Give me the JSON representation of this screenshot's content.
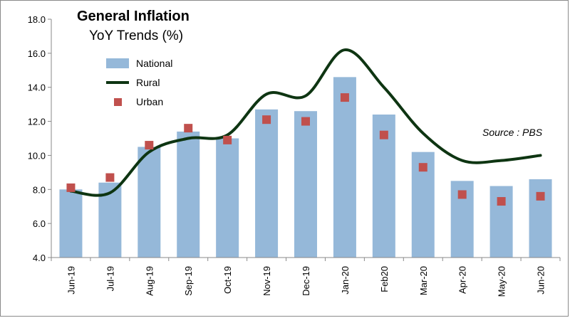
{
  "chart_data": {
    "type": "bar",
    "title": "General Inflation",
    "subtitle": "YoY Trends (%)",
    "source": "Source : PBS",
    "categories": [
      "Jun-19",
      "Jul-19",
      "Aug-19",
      "Sep-19",
      "Oct-19",
      "Nov-19",
      "Dec-19",
      "Jan-20",
      "Feb20",
      "Mar-20",
      "Apr-20",
      "May-20",
      "Jun-20"
    ],
    "ylim": [
      4.0,
      18.0
    ],
    "yticks": [
      "4.0",
      "6.0",
      "8.0",
      "10.0",
      "12.0",
      "14.0",
      "16.0",
      "18.0"
    ],
    "ytick_values": [
      4,
      6,
      8,
      10,
      12,
      14,
      16,
      18
    ],
    "grid": false,
    "legend_position": "top-left",
    "series": [
      {
        "name": "National",
        "type": "bar",
        "color": "#95b8d9",
        "values": [
          8.0,
          8.4,
          10.5,
          11.4,
          11.0,
          12.7,
          12.6,
          14.6,
          12.4,
          10.2,
          8.5,
          8.2,
          8.6
        ]
      },
      {
        "name": "Rural",
        "type": "line",
        "color": "#0e3512",
        "values": [
          7.9,
          7.8,
          10.2,
          11.0,
          11.2,
          13.6,
          13.5,
          16.2,
          14.0,
          11.3,
          9.7,
          9.7,
          10.0
        ]
      },
      {
        "name": "Urban",
        "type": "scatter",
        "color": "#c0504d",
        "values": [
          8.1,
          8.7,
          10.6,
          11.6,
          10.9,
          12.1,
          12.0,
          13.4,
          11.2,
          9.3,
          7.7,
          7.3,
          7.6
        ]
      }
    ]
  }
}
